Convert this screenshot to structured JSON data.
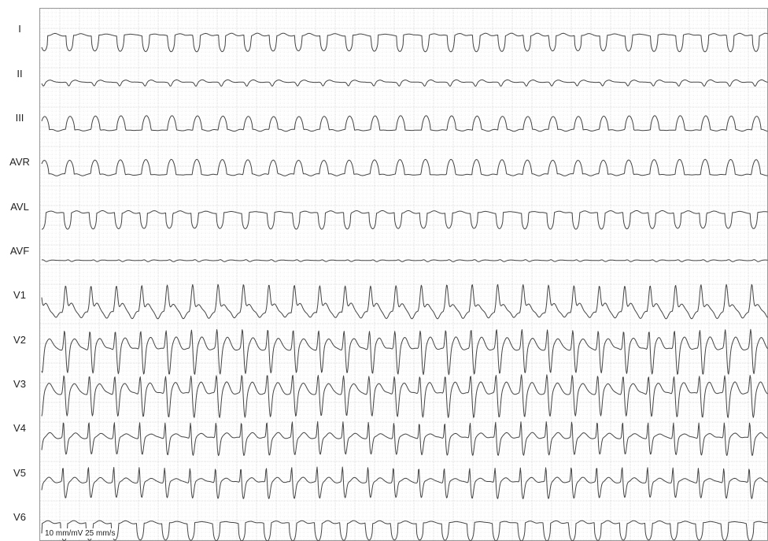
{
  "leads": [
    {
      "label": "I",
      "shape": "neg-broad",
      "amp": 1.0
    },
    {
      "label": "II",
      "shape": "small-neg",
      "amp": 0.35
    },
    {
      "label": "III",
      "shape": "pos-broad",
      "amp": 0.9
    },
    {
      "label": "AVR",
      "shape": "pos-broad",
      "amp": 0.95
    },
    {
      "label": "AVL",
      "shape": "neg-broad",
      "amp": 1.0
    },
    {
      "label": "AVF",
      "shape": "tiny",
      "amp": 0.22
    },
    {
      "label": "V1",
      "shape": "pos-tall",
      "amp": 1.6
    },
    {
      "label": "V2",
      "shape": "biphasic",
      "amp": 2.0
    },
    {
      "label": "V3",
      "shape": "biphasic",
      "amp": 1.9
    },
    {
      "label": "V4",
      "shape": "spike-neg",
      "amp": 1.5
    },
    {
      "label": "V5",
      "shape": "spike-neg",
      "amp": 1.4
    },
    {
      "label": "V6",
      "shape": "neg-broad",
      "amp": 1.1
    }
  ],
  "calibration_note": "10 mm/mV   25 mm/s",
  "colors": {
    "grid_minor": "#dcdcdc",
    "grid_major": "#bdbdbd",
    "trace": "#444444",
    "border": "#999999"
  }
}
